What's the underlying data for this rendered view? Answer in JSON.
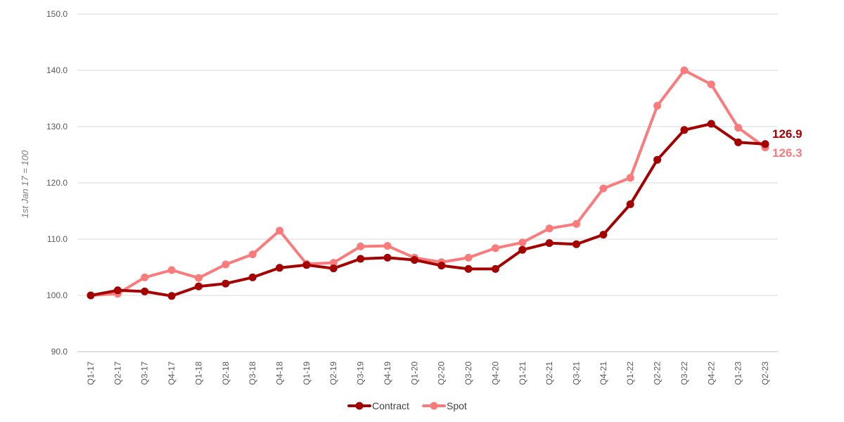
{
  "chart_data": {
    "type": "line",
    "title": "",
    "xlabel": "",
    "ylabel": "1st Jan 17 = 100",
    "ylim": [
      90,
      150
    ],
    "yticks": [
      90,
      100,
      110,
      120,
      130,
      140,
      150
    ],
    "ytick_labels": [
      "90.0",
      "100.0",
      "110.0",
      "120.0",
      "130.0",
      "140.0",
      "150.0"
    ],
    "grid": "horizontal",
    "legend_position": "bottom-center",
    "categories": [
      "Q1-17",
      "Q2-17",
      "Q3-17",
      "Q4-17",
      "Q1-18",
      "Q2-18",
      "Q3-18",
      "Q4-18",
      "Q1-19",
      "Q2-19",
      "Q3-19",
      "Q4-19",
      "Q1-20",
      "Q2-20",
      "Q3-20",
      "Q4-20",
      "Q1-21",
      "Q2-21",
      "Q3-21",
      "Q4-21",
      "Q1-22",
      "Q2-22",
      "Q3-22",
      "Q4-22",
      "Q1-23",
      "Q2-23"
    ],
    "series": [
      {
        "name": "Contract",
        "color": "#a50000",
        "values": [
          100.0,
          100.9,
          100.7,
          99.9,
          101.6,
          102.1,
          103.2,
          104.9,
          105.4,
          104.8,
          106.5,
          106.7,
          106.3,
          105.3,
          104.7,
          104.7,
          108.1,
          109.3,
          109.1,
          110.8,
          116.2,
          124.1,
          129.4,
          130.5,
          127.2,
          126.9
        ],
        "end_label": "126.9"
      },
      {
        "name": "Spot",
        "color": "#fa7b7b",
        "values": [
          100.0,
          100.3,
          103.2,
          104.5,
          103.1,
          105.5,
          107.3,
          111.5,
          105.6,
          105.8,
          108.7,
          108.8,
          106.7,
          105.9,
          106.7,
          108.4,
          109.4,
          111.9,
          112.7,
          119.0,
          120.9,
          133.7,
          140.0,
          137.5,
          129.8,
          126.3
        ],
        "end_label": "126.3"
      }
    ]
  }
}
